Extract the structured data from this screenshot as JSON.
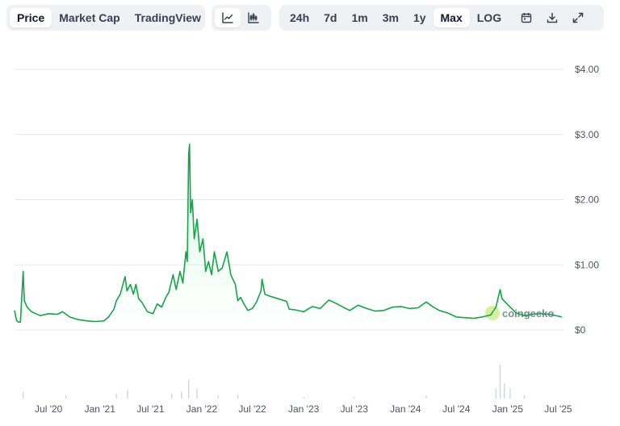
{
  "toolbar": {
    "metric_tabs": [
      {
        "label": "Price",
        "active": true
      },
      {
        "label": "Market Cap",
        "active": false
      },
      {
        "label": "TradingView",
        "active": false
      }
    ],
    "chart_type_icons": [
      "line-chart-icon",
      "candlestick-chart-icon"
    ],
    "range_tabs": [
      {
        "label": "24h",
        "active": false
      },
      {
        "label": "7d",
        "active": false
      },
      {
        "label": "1m",
        "active": false
      },
      {
        "label": "3m",
        "active": false
      },
      {
        "label": "1y",
        "active": false
      },
      {
        "label": "Max",
        "active": true
      },
      {
        "label": "LOG",
        "active": false
      }
    ],
    "action_icons": [
      "calendar-icon",
      "download-icon",
      "fullscreen-icon"
    ]
  },
  "watermark": "coingecko",
  "colors": {
    "line": "#16a34a",
    "fill": "#dcfce7",
    "grid": "#e5e7eb",
    "volume": "#d1d5db",
    "accent": "#111827"
  },
  "chart_data": {
    "type": "area",
    "ylabel": "",
    "xlabel": "",
    "y_ticks": [
      {
        "label": "$4.00",
        "value": 4
      },
      {
        "label": "$3.00",
        "value": 3
      },
      {
        "label": "$2.00",
        "value": 2
      },
      {
        "label": "$1.00",
        "value": 1
      },
      {
        "label": "$0",
        "value": 0
      }
    ],
    "x_ticks": [
      {
        "label": "Jul '20",
        "date": "2020-07-01"
      },
      {
        "label": "Jan '21",
        "date": "2021-01-01"
      },
      {
        "label": "Jul '21",
        "date": "2021-07-01"
      },
      {
        "label": "Jan '22",
        "date": "2022-01-01"
      },
      {
        "label": "Jul '22",
        "date": "2022-07-01"
      },
      {
        "label": "Jan '23",
        "date": "2023-01-01"
      },
      {
        "label": "Jul '23",
        "date": "2023-07-01"
      },
      {
        "label": "Jan '24",
        "date": "2024-01-01"
      },
      {
        "label": "Jul '24",
        "date": "2024-07-01"
      },
      {
        "label": "Jan '25",
        "date": "2025-01-01"
      },
      {
        "label": "Jul '25",
        "date": "2025-07-01"
      }
    ],
    "ylim": [
      0,
      4
    ],
    "xlim": [
      "2020-03-01",
      "2025-07-20"
    ],
    "series": [
      {
        "points": [
          [
            "2020-03-01",
            0.3
          ],
          [
            "2020-03-08",
            0.15
          ],
          [
            "2020-03-15",
            0.12
          ],
          [
            "2020-03-22",
            0.12
          ],
          [
            "2020-04-01",
            0.9
          ],
          [
            "2020-04-05",
            0.45
          ],
          [
            "2020-04-15",
            0.35
          ],
          [
            "2020-05-01",
            0.28
          ],
          [
            "2020-06-01",
            0.22
          ],
          [
            "2020-07-01",
            0.25
          ],
          [
            "2020-08-01",
            0.24
          ],
          [
            "2020-08-20",
            0.28
          ],
          [
            "2020-09-15",
            0.2
          ],
          [
            "2020-10-15",
            0.16
          ],
          [
            "2020-11-15",
            0.14
          ],
          [
            "2020-12-15",
            0.13
          ],
          [
            "2021-01-15",
            0.14
          ],
          [
            "2021-02-01",
            0.2
          ],
          [
            "2021-02-20",
            0.32
          ],
          [
            "2021-03-01",
            0.45
          ],
          [
            "2021-03-15",
            0.55
          ],
          [
            "2021-04-01",
            0.82
          ],
          [
            "2021-04-08",
            0.6
          ],
          [
            "2021-04-20",
            0.7
          ],
          [
            "2021-05-01",
            0.55
          ],
          [
            "2021-05-10",
            0.7
          ],
          [
            "2021-05-20",
            0.48
          ],
          [
            "2021-06-01",
            0.42
          ],
          [
            "2021-06-20",
            0.28
          ],
          [
            "2021-07-10",
            0.25
          ],
          [
            "2021-07-25",
            0.4
          ],
          [
            "2021-08-10",
            0.35
          ],
          [
            "2021-08-25",
            0.5
          ],
          [
            "2021-09-05",
            0.58
          ],
          [
            "2021-09-20",
            0.85
          ],
          [
            "2021-10-01",
            0.62
          ],
          [
            "2021-10-15",
            0.9
          ],
          [
            "2021-10-25",
            0.72
          ],
          [
            "2021-11-05",
            1.2
          ],
          [
            "2021-11-10",
            1.05
          ],
          [
            "2021-11-15",
            2.7
          ],
          [
            "2021-11-18",
            2.85
          ],
          [
            "2021-11-22",
            1.8
          ],
          [
            "2021-11-28",
            2.0
          ],
          [
            "2021-12-05",
            1.4
          ],
          [
            "2021-12-15",
            1.7
          ],
          [
            "2021-12-25",
            1.2
          ],
          [
            "2022-01-05",
            1.4
          ],
          [
            "2022-01-15",
            0.9
          ],
          [
            "2022-01-25",
            1.05
          ],
          [
            "2022-02-05",
            0.85
          ],
          [
            "2022-02-15",
            1.2
          ],
          [
            "2022-03-01",
            0.9
          ],
          [
            "2022-03-15",
            0.95
          ],
          [
            "2022-04-01",
            1.2
          ],
          [
            "2022-04-15",
            0.85
          ],
          [
            "2022-05-01",
            0.7
          ],
          [
            "2022-05-10",
            0.45
          ],
          [
            "2022-05-20",
            0.5
          ],
          [
            "2022-06-01",
            0.4
          ],
          [
            "2022-06-15",
            0.3
          ],
          [
            "2022-07-01",
            0.33
          ],
          [
            "2022-07-15",
            0.42
          ],
          [
            "2022-08-01",
            0.6
          ],
          [
            "2022-08-05",
            0.78
          ],
          [
            "2022-08-15",
            0.55
          ],
          [
            "2022-09-01",
            0.52
          ],
          [
            "2022-10-01",
            0.48
          ],
          [
            "2022-11-01",
            0.44
          ],
          [
            "2022-11-10",
            0.32
          ],
          [
            "2022-12-01",
            0.31
          ],
          [
            "2023-01-01",
            0.28
          ],
          [
            "2023-02-01",
            0.36
          ],
          [
            "2023-03-01",
            0.33
          ],
          [
            "2023-04-01",
            0.46
          ],
          [
            "2023-05-01",
            0.4
          ],
          [
            "2023-06-01",
            0.33
          ],
          [
            "2023-06-15",
            0.3
          ],
          [
            "2023-07-15",
            0.38
          ],
          [
            "2023-08-15",
            0.33
          ],
          [
            "2023-09-15",
            0.29
          ],
          [
            "2023-10-15",
            0.3
          ],
          [
            "2023-11-15",
            0.35
          ],
          [
            "2023-12-15",
            0.36
          ],
          [
            "2024-01-15",
            0.33
          ],
          [
            "2024-02-15",
            0.34
          ],
          [
            "2024-03-15",
            0.43
          ],
          [
            "2024-04-10",
            0.35
          ],
          [
            "2024-05-01",
            0.3
          ],
          [
            "2024-06-01",
            0.26
          ],
          [
            "2024-07-01",
            0.2
          ],
          [
            "2024-08-01",
            0.19
          ],
          [
            "2024-09-01",
            0.18
          ],
          [
            "2024-10-01",
            0.2
          ],
          [
            "2024-11-01",
            0.23
          ],
          [
            "2024-11-20",
            0.35
          ],
          [
            "2024-12-01",
            0.55
          ],
          [
            "2024-12-05",
            0.62
          ],
          [
            "2024-12-12",
            0.48
          ],
          [
            "2024-12-25",
            0.42
          ],
          [
            "2025-01-10",
            0.35
          ],
          [
            "2025-02-01",
            0.26
          ],
          [
            "2025-03-01",
            0.22
          ],
          [
            "2025-04-01",
            0.24
          ],
          [
            "2025-05-01",
            0.25
          ],
          [
            "2025-06-01",
            0.24
          ],
          [
            "2025-07-15",
            0.2
          ]
        ]
      }
    ],
    "volume": [
      [
        "2020-04-01",
        0.2
      ],
      [
        "2020-09-01",
        0.1
      ],
      [
        "2021-03-01",
        0.15
      ],
      [
        "2021-04-10",
        0.25
      ],
      [
        "2021-09-15",
        0.15
      ],
      [
        "2021-10-20",
        0.2
      ],
      [
        "2021-11-15",
        0.55
      ],
      [
        "2021-12-15",
        0.3
      ],
      [
        "2022-03-01",
        0.1
      ],
      [
        "2022-05-10",
        0.12
      ],
      [
        "2023-01-01",
        0.05
      ],
      [
        "2023-07-01",
        0.05
      ],
      [
        "2024-03-15",
        0.08
      ],
      [
        "2024-11-20",
        0.3
      ],
      [
        "2024-12-05",
        1.0
      ],
      [
        "2024-12-20",
        0.45
      ],
      [
        "2025-01-10",
        0.3
      ],
      [
        "2025-03-01",
        0.1
      ]
    ],
    "grid": true,
    "legend": "none"
  }
}
